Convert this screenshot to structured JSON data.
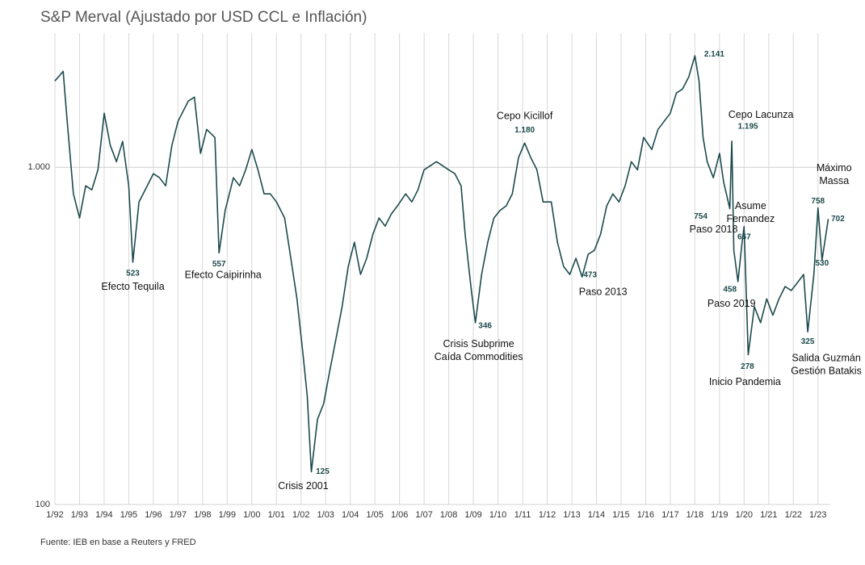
{
  "chart_data": {
    "type": "line",
    "title": "S&P Merval (Ajustado por USD CCL e Inflación)",
    "source": "Fuente: IEB en base a Reuters y FRED",
    "log_scale": true,
    "grid": true,
    "series": [
      {
        "name": "S&P Merval",
        "color": "#1d4a4c",
        "x": [
          "1992-01",
          "1992-05",
          "1992-07",
          "1992-10",
          "1993-01",
          "1993-04",
          "1993-07",
          "1993-10",
          "1994-01",
          "1994-04",
          "1994-07",
          "1994-10",
          "1995-01",
          "1995-03",
          "1995-06",
          "1995-10",
          "1996-01",
          "1996-04",
          "1996-07",
          "1996-10",
          "1997-01",
          "1997-06",
          "1997-09",
          "1997-12",
          "1998-03",
          "1998-07",
          "1998-09",
          "1998-12",
          "1999-04",
          "1999-07",
          "1999-10",
          "2000-01",
          "2000-04",
          "2000-07",
          "2000-10",
          "2001-01",
          "2001-05",
          "2001-08",
          "2001-11",
          "2002-02",
          "2002-04",
          "2002-06",
          "2002-09",
          "2002-12",
          "2003-03",
          "2003-06",
          "2003-09",
          "2003-12",
          "2004-03",
          "2004-06",
          "2004-09",
          "2004-12",
          "2005-03",
          "2005-06",
          "2005-09",
          "2005-12",
          "2006-04",
          "2006-07",
          "2006-10",
          "2007-01",
          "2007-04",
          "2007-07",
          "2007-10",
          "2008-01",
          "2008-04",
          "2008-07",
          "2008-09",
          "2008-12",
          "2009-02",
          "2009-05",
          "2009-08",
          "2009-11",
          "2010-02",
          "2010-05",
          "2010-08",
          "2010-11",
          "2011-02",
          "2011-05",
          "2011-08",
          "2011-11",
          "2012-03",
          "2012-06",
          "2012-09",
          "2012-12",
          "2013-03",
          "2013-06",
          "2013-09",
          "2013-12",
          "2014-03",
          "2014-06",
          "2014-09",
          "2014-12",
          "2015-03",
          "2015-06",
          "2015-09",
          "2015-12",
          "2016-04",
          "2016-07",
          "2016-10",
          "2017-01",
          "2017-04",
          "2017-07",
          "2017-10",
          "2018-01",
          "2018-03",
          "2018-05",
          "2018-07",
          "2018-10",
          "2019-01",
          "2019-03",
          "2019-06",
          "2019-07",
          "2019-08",
          "2019-10",
          "2019-12",
          "2020-01",
          "2020-03",
          "2020-06",
          "2020-09",
          "2020-12",
          "2021-03",
          "2021-06",
          "2021-09",
          "2021-12",
          "2022-03",
          "2022-06",
          "2022-08",
          "2022-11",
          "2023-01",
          "2023-03",
          "2023-06"
        ],
        "values": [
          1803,
          1925,
          1369,
          834,
          707,
          881,
          857,
          983,
          1446,
          1160,
          1039,
          1193,
          881,
          523,
          789,
          881,
          957,
          931,
          881,
          1160,
          1369,
          1571,
          1615,
          1100,
          1295,
          1226,
          557,
          745,
          931,
          881,
          983,
          1129,
          983,
          834,
          834,
          789,
          707,
          537,
          407,
          277,
          210,
          125,
          179,
          199,
          249,
          309,
          386,
          508,
          599,
          481,
          537,
          633,
          707,
          669,
          727,
          768,
          834,
          789,
          857,
          983,
          1011,
          1039,
          1011,
          983,
          957,
          881,
          633,
          431,
          346,
          481,
          599,
          707,
          745,
          768,
          834,
          1068,
          1180,
          1068,
          983,
          789,
          789,
          599,
          508,
          481,
          537,
          473,
          552,
          567,
          633,
          768,
          834,
          789,
          881,
          1039,
          983,
          1226,
          1129,
          1295,
          1369,
          1446,
          1661,
          1706,
          1853,
          2141,
          1803,
          1226,
          1039,
          931,
          1100,
          906,
          754,
          1195,
          567,
          458,
          599,
          667,
          278,
          386,
          346,
          407,
          364,
          407,
          443,
          431,
          455,
          481,
          325,
          481,
          758,
          530,
          702
        ]
      }
    ],
    "xlim": [
      "1992-01",
      "2023-07"
    ],
    "xticks": [
      {
        "value": "1992-01",
        "label": "1/92"
      },
      {
        "value": "1993-01",
        "label": "1/93"
      },
      {
        "value": "1994-01",
        "label": "1/94"
      },
      {
        "value": "1995-01",
        "label": "1/95"
      },
      {
        "value": "1996-01",
        "label": "1/96"
      },
      {
        "value": "1997-01",
        "label": "1/97"
      },
      {
        "value": "1998-01",
        "label": "1/98"
      },
      {
        "value": "1999-01",
        "label": "1/99"
      },
      {
        "value": "2000-01",
        "label": "1/00"
      },
      {
        "value": "2001-01",
        "label": "1/01"
      },
      {
        "value": "2002-01",
        "label": "1/02"
      },
      {
        "value": "2003-01",
        "label": "1/03"
      },
      {
        "value": "2004-01",
        "label": "1/04"
      },
      {
        "value": "2005-01",
        "label": "1/05"
      },
      {
        "value": "2006-01",
        "label": "1/06"
      },
      {
        "value": "2007-01",
        "label": "1/07"
      },
      {
        "value": "2008-01",
        "label": "1/08"
      },
      {
        "value": "2009-01",
        "label": "1/09"
      },
      {
        "value": "2010-01",
        "label": "1/10"
      },
      {
        "value": "2011-01",
        "label": "1/11"
      },
      {
        "value": "2012-01",
        "label": "1/12"
      },
      {
        "value": "2013-01",
        "label": "1/13"
      },
      {
        "value": "2014-01",
        "label": "1/14"
      },
      {
        "value": "2015-01",
        "label": "1/15"
      },
      {
        "value": "2016-01",
        "label": "1/16"
      },
      {
        "value": "2017-01",
        "label": "1/17"
      },
      {
        "value": "2018-01",
        "label": "1/18"
      },
      {
        "value": "2019-01",
        "label": "1/19"
      },
      {
        "value": "2020-01",
        "label": "1/20"
      },
      {
        "value": "2021-01",
        "label": "1/21"
      },
      {
        "value": "2022-01",
        "label": "1/22"
      },
      {
        "value": "2023-01",
        "label": "1/23"
      }
    ],
    "ylim": [
      100,
      2500
    ],
    "yticks": [
      100,
      {
        "value": 1000,
        "label": "1.000"
      }
    ],
    "annotations": [
      {
        "x": "1995-03",
        "value": 523,
        "label": "523",
        "text": [
          "Efecto Tequila"
        ]
      },
      {
        "x": "1998-09",
        "value": 557,
        "label": "557",
        "text": [
          "Efecto Caipirinha"
        ]
      },
      {
        "x": "2002-06",
        "value": 125,
        "label": "125",
        "text": [
          "Crisis 2001"
        ]
      },
      {
        "x": "2009-02",
        "value": 346,
        "label": "346",
        "text": [
          "Crisis Subprime",
          "Caída Commodities"
        ]
      },
      {
        "x": "2011-02",
        "value": 1180,
        "label": "1.180",
        "text": [
          "Cepo Kicillof"
        ]
      },
      {
        "x": "2013-06",
        "value": 473,
        "label": "473",
        "text": [
          "Paso 2013"
        ]
      },
      {
        "x": "2018-01",
        "value": 2141,
        "label": "2.141",
        "text": []
      },
      {
        "x": "2019-07",
        "value": 1195,
        "label": "1.195",
        "text": [
          "Cepo Lacunza"
        ]
      },
      {
        "x": "2019-06",
        "value": 754,
        "label": "754",
        "text": [
          "Paso 2018"
        ]
      },
      {
        "x": "2019-10",
        "value": 458,
        "label": "458",
        "text": [
          "Paso 2019"
        ]
      },
      {
        "x": "2020-03",
        "value": 278,
        "label": "278",
        "text": [
          "Inicio Pandemia"
        ]
      },
      {
        "x": "2020-01",
        "value": 667,
        "label": "667",
        "text": [
          "Asume",
          "Fernandez"
        ]
      },
      {
        "x": "2022-08",
        "value": 325,
        "label": "325",
        "text": [
          "Salida Guzmán",
          "Gestión Batakis"
        ]
      },
      {
        "x": "2023-01",
        "value": 758,
        "label": "758",
        "text": [
          "Máximo",
          "Massa"
        ]
      },
      {
        "x": "2023-03",
        "value": 530,
        "label": "530",
        "text": []
      },
      {
        "x": "2023-06",
        "value": 702,
        "label": "702",
        "text": []
      }
    ]
  }
}
